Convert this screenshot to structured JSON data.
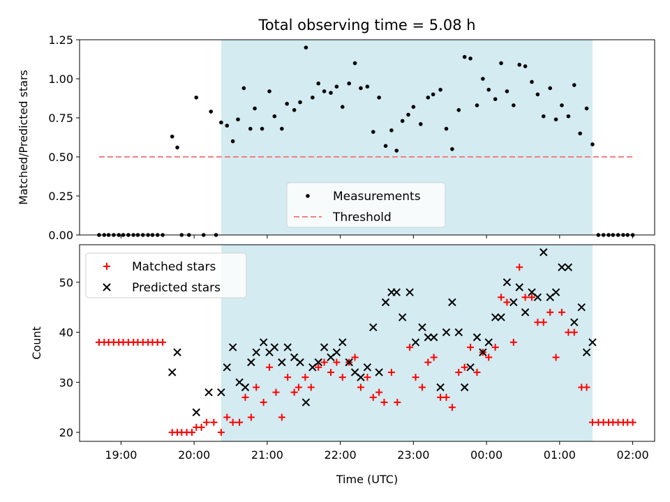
{
  "chart_data": [
    {
      "type": "scatter",
      "title": "Total observing time = 5.08 h",
      "xlabel": "",
      "ylabel": "Matched/Predicted stars",
      "ylim": [
        0,
        1.25
      ],
      "yticks": [
        "0.00",
        "0.25",
        "0.50",
        "0.75",
        "1.00",
        "1.25"
      ],
      "xlim_hours": [
        18.433,
        26.3
      ],
      "grid": false,
      "legend_placement": "lower-center",
      "shaded_interval_hours": [
        20.37,
        25.45
      ],
      "shade_color": "#d4ebf1",
      "series": [
        {
          "name": "Measurements",
          "marker": "dot",
          "color": "#000000",
          "points": [
            [
              18.7,
              0
            ],
            [
              18.77,
              0
            ],
            [
              18.83,
              0
            ],
            [
              18.9,
              0
            ],
            [
              18.97,
              0
            ],
            [
              19.03,
              0
            ],
            [
              19.1,
              0
            ],
            [
              19.17,
              0
            ],
            [
              19.23,
              0
            ],
            [
              19.3,
              0
            ],
            [
              19.37,
              0
            ],
            [
              19.43,
              0
            ],
            [
              19.5,
              0
            ],
            [
              19.57,
              0
            ],
            [
              19.7,
              0.63
            ],
            [
              19.77,
              0.56
            ],
            [
              19.83,
              0
            ],
            [
              19.93,
              0
            ],
            [
              20.03,
              0.88
            ],
            [
              20.13,
              0
            ],
            [
              20.23,
              0.79
            ],
            [
              20.3,
              0
            ],
            [
              20.37,
              0.72
            ],
            [
              20.45,
              0.7
            ],
            [
              20.53,
              0.6
            ],
            [
              20.6,
              0.74
            ],
            [
              20.68,
              0.94
            ],
            [
              20.77,
              0.68
            ],
            [
              20.83,
              0.81
            ],
            [
              20.93,
              0.68
            ],
            [
              21.03,
              0.92
            ],
            [
              21.1,
              0.76
            ],
            [
              21.2,
              0.68
            ],
            [
              21.27,
              0.84
            ],
            [
              21.37,
              0.8
            ],
            [
              21.45,
              0.85
            ],
            [
              21.53,
              1.2
            ],
            [
              21.62,
              0.88
            ],
            [
              21.7,
              0.97
            ],
            [
              21.78,
              0.92
            ],
            [
              21.87,
              0.91
            ],
            [
              21.95,
              0.95
            ],
            [
              22.03,
              0.82
            ],
            [
              22.12,
              0.97
            ],
            [
              22.2,
              1.1
            ],
            [
              22.28,
              0.94
            ],
            [
              22.37,
              0.95
            ],
            [
              22.45,
              0.66
            ],
            [
              22.53,
              0.88
            ],
            [
              22.62,
              0.57
            ],
            [
              22.7,
              0.67
            ],
            [
              22.77,
              0.54
            ],
            [
              22.85,
              0.73
            ],
            [
              22.93,
              0.77
            ],
            [
              23.0,
              0.82
            ],
            [
              23.1,
              0.71
            ],
            [
              23.2,
              0.88
            ],
            [
              23.27,
              0.9
            ],
            [
              23.37,
              0.93
            ],
            [
              23.45,
              0.68
            ],
            [
              23.53,
              0.55
            ],
            [
              23.62,
              0.8
            ],
            [
              23.7,
              1.14
            ],
            [
              23.78,
              1.13
            ],
            [
              23.87,
              0.83
            ],
            [
              23.95,
              1.0
            ],
            [
              24.03,
              0.93
            ],
            [
              24.12,
              0.87
            ],
            [
              24.2,
              1.1
            ],
            [
              24.28,
              0.92
            ],
            [
              24.37,
              0.83
            ],
            [
              24.45,
              1.09
            ],
            [
              24.53,
              1.08
            ],
            [
              24.62,
              0.98
            ],
            [
              24.7,
              0.9
            ],
            [
              24.78,
              0.76
            ],
            [
              24.87,
              0.94
            ],
            [
              24.95,
              0.74
            ],
            [
              25.03,
              0.83
            ],
            [
              25.12,
              0.76
            ],
            [
              25.2,
              0.96
            ],
            [
              25.28,
              0.65
            ],
            [
              25.37,
              0.81
            ],
            [
              25.45,
              0.58
            ],
            [
              25.53,
              0
            ],
            [
              25.6,
              0
            ],
            [
              25.67,
              0
            ],
            [
              25.73,
              0
            ],
            [
              25.8,
              0
            ],
            [
              25.87,
              0
            ],
            [
              25.93,
              0
            ],
            [
              26.0,
              0
            ]
          ]
        },
        {
          "name": "Threshold",
          "marker": "dashed-line",
          "color": "#f08080",
          "points": [
            [
              18.7,
              0.5
            ],
            [
              26.0,
              0.5
            ]
          ]
        }
      ]
    },
    {
      "type": "scatter",
      "title": "",
      "xlabel": "Time (UTC)",
      "ylabel": "Count",
      "ylim": [
        18.2,
        57.5
      ],
      "yticks": [
        "20",
        "30",
        "40",
        "50"
      ],
      "xlim_hours": [
        18.433,
        26.3
      ],
      "xticks": [
        "19:00",
        "20:00",
        "21:00",
        "22:00",
        "23:00",
        "00:00",
        "01:00",
        "02:00"
      ],
      "grid": false,
      "legend_placement": "top-left",
      "shaded_interval_hours": [
        20.37,
        25.45
      ],
      "shade_color": "#d4ebf1",
      "series": [
        {
          "name": "Matched stars",
          "marker": "plus",
          "color": "#ff0000",
          "points": [
            [
              18.7,
              38
            ],
            [
              18.77,
              38
            ],
            [
              18.83,
              38
            ],
            [
              18.9,
              38
            ],
            [
              18.97,
              38
            ],
            [
              19.03,
              38
            ],
            [
              19.1,
              38
            ],
            [
              19.17,
              38
            ],
            [
              19.23,
              38
            ],
            [
              19.3,
              38
            ],
            [
              19.37,
              38
            ],
            [
              19.43,
              38
            ],
            [
              19.5,
              38
            ],
            [
              19.57,
              38
            ],
            [
              19.7,
              20
            ],
            [
              19.77,
              20
            ],
            [
              19.83,
              20
            ],
            [
              19.9,
              20
            ],
            [
              19.97,
              20
            ],
            [
              20.03,
              21
            ],
            [
              20.1,
              21
            ],
            [
              20.17,
              22
            ],
            [
              20.27,
              22
            ],
            [
              20.37,
              20
            ],
            [
              20.45,
              23
            ],
            [
              20.53,
              22
            ],
            [
              20.62,
              22
            ],
            [
              20.7,
              27
            ],
            [
              20.78,
              23
            ],
            [
              20.85,
              29
            ],
            [
              20.95,
              26
            ],
            [
              21.03,
              33
            ],
            [
              21.12,
              28
            ],
            [
              21.2,
              23
            ],
            [
              21.28,
              31
            ],
            [
              21.37,
              28
            ],
            [
              21.43,
              29
            ],
            [
              21.52,
              31
            ],
            [
              21.6,
              29
            ],
            [
              21.7,
              33
            ],
            [
              21.78,
              34
            ],
            [
              21.87,
              32
            ],
            [
              21.95,
              34
            ],
            [
              22.03,
              31
            ],
            [
              22.12,
              34
            ],
            [
              22.2,
              35
            ],
            [
              22.28,
              29
            ],
            [
              22.37,
              31
            ],
            [
              22.45,
              27
            ],
            [
              22.53,
              28
            ],
            [
              22.6,
              26
            ],
            [
              22.7,
              32
            ],
            [
              22.78,
              26
            ],
            [
              22.95,
              37
            ],
            [
              23.03,
              31
            ],
            [
              23.12,
              29
            ],
            [
              23.2,
              34
            ],
            [
              23.28,
              35
            ],
            [
              23.37,
              27
            ],
            [
              23.45,
              27
            ],
            [
              23.53,
              25
            ],
            [
              23.62,
              32
            ],
            [
              23.7,
              33
            ],
            [
              23.78,
              37
            ],
            [
              23.87,
              32
            ],
            [
              23.95,
              36
            ],
            [
              24.03,
              35
            ],
            [
              24.12,
              37
            ],
            [
              24.2,
              47
            ],
            [
              24.28,
              46
            ],
            [
              24.37,
              38
            ],
            [
              24.45,
              53
            ],
            [
              24.53,
              47
            ],
            [
              24.62,
              47
            ],
            [
              24.7,
              42
            ],
            [
              24.78,
              42
            ],
            [
              24.87,
              44
            ],
            [
              24.95,
              35
            ],
            [
              25.03,
              44
            ],
            [
              25.12,
              40
            ],
            [
              25.2,
              40
            ],
            [
              25.3,
              29
            ],
            [
              25.37,
              29
            ],
            [
              25.45,
              22
            ],
            [
              25.53,
              22
            ],
            [
              25.6,
              22
            ],
            [
              25.67,
              22
            ],
            [
              25.73,
              22
            ],
            [
              25.8,
              22
            ],
            [
              25.87,
              22
            ],
            [
              25.93,
              22
            ],
            [
              26.0,
              22
            ]
          ]
        },
        {
          "name": "Predicted stars",
          "marker": "x",
          "color": "#000000",
          "points": [
            [
              19.7,
              32
            ],
            [
              19.77,
              36
            ],
            [
              20.03,
              24
            ],
            [
              20.2,
              28
            ],
            [
              20.37,
              28
            ],
            [
              20.45,
              33
            ],
            [
              20.53,
              37
            ],
            [
              20.62,
              30
            ],
            [
              20.7,
              29
            ],
            [
              20.78,
              34
            ],
            [
              20.85,
              36
            ],
            [
              20.95,
              38
            ],
            [
              21.03,
              36
            ],
            [
              21.1,
              37
            ],
            [
              21.2,
              34
            ],
            [
              21.28,
              37
            ],
            [
              21.37,
              35
            ],
            [
              21.45,
              34
            ],
            [
              21.53,
              26
            ],
            [
              21.62,
              33
            ],
            [
              21.7,
              34
            ],
            [
              21.78,
              37
            ],
            [
              21.87,
              35
            ],
            [
              21.95,
              36
            ],
            [
              22.03,
              38
            ],
            [
              22.12,
              34
            ],
            [
              22.2,
              32
            ],
            [
              22.28,
              31
            ],
            [
              22.37,
              33
            ],
            [
              22.45,
              41
            ],
            [
              22.53,
              32
            ],
            [
              22.62,
              46
            ],
            [
              22.7,
              48
            ],
            [
              22.77,
              48
            ],
            [
              22.85,
              43
            ],
            [
              22.95,
              48
            ],
            [
              23.03,
              38
            ],
            [
              23.12,
              41
            ],
            [
              23.2,
              39
            ],
            [
              23.28,
              39
            ],
            [
              23.37,
              29
            ],
            [
              23.45,
              40
            ],
            [
              23.53,
              46
            ],
            [
              23.62,
              40
            ],
            [
              23.7,
              29
            ],
            [
              23.78,
              33
            ],
            [
              23.87,
              39
            ],
            [
              23.95,
              36
            ],
            [
              24.03,
              38
            ],
            [
              24.12,
              43
            ],
            [
              24.2,
              43
            ],
            [
              24.28,
              50
            ],
            [
              24.37,
              46
            ],
            [
              24.45,
              49
            ],
            [
              24.53,
              44
            ],
            [
              24.62,
              48
            ],
            [
              24.7,
              47
            ],
            [
              24.78,
              56
            ],
            [
              24.87,
              47
            ],
            [
              24.95,
              48
            ],
            [
              25.03,
              53
            ],
            [
              25.12,
              53
            ],
            [
              25.2,
              42
            ],
            [
              25.3,
              45
            ],
            [
              25.37,
              36
            ],
            [
              25.45,
              38
            ]
          ]
        }
      ]
    }
  ]
}
